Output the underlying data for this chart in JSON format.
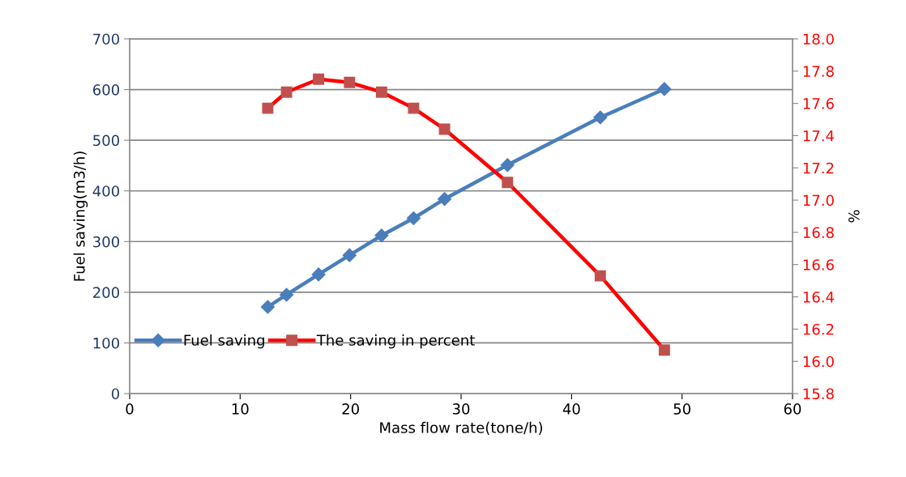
{
  "chart_data": {
    "type": "line",
    "xlabel": "Mass flow rate(tone/h)",
    "ylabel": "Fuel saving(m3/h)",
    "y2label": "%",
    "x": [
      12.5,
      14.2,
      17.1,
      19.9,
      22.8,
      25.7,
      28.5,
      34.2,
      42.6,
      48.4
    ],
    "series": [
      {
        "name": "Fuel saving",
        "color": "#4a7ebb",
        "marker": "diamond",
        "values": [
          171,
          195,
          235,
          273,
          312,
          346,
          384,
          451,
          545,
          601
        ]
      },
      {
        "name": "The saving in percent",
        "color": "#ff0000",
        "marker": "square",
        "axis": "y2",
        "values": [
          17.57,
          17.67,
          17.75,
          17.73,
          17.67,
          17.57,
          17.44,
          17.11,
          16.53,
          16.07
        ]
      }
    ],
    "xlim": [
      0,
      60
    ],
    "xticks": [
      0,
      10,
      20,
      30,
      40,
      50,
      60
    ],
    "ylim": [
      0,
      700
    ],
    "yticks": [
      0,
      100,
      200,
      300,
      400,
      500,
      600,
      700
    ],
    "y2lim": [
      15.8,
      18.0
    ],
    "y2ticks": [
      {
        "value": 15.8,
        "label": "15.8"
      },
      {
        "value": 16.0,
        "label": "16.0"
      },
      {
        "value": 16.2,
        "label": "16.2"
      },
      {
        "value": 16.4,
        "label": "16.4"
      },
      {
        "value": 16.6,
        "label": "16.6"
      },
      {
        "value": 16.8,
        "label": "16.8"
      },
      {
        "value": 17.0,
        "label": "17.0"
      },
      {
        "value": 17.2,
        "label": "17.2"
      },
      {
        "value": 17.4,
        "label": "17.4"
      },
      {
        "value": 17.6,
        "label": "17.6"
      },
      {
        "value": 17.8,
        "label": "17.8"
      },
      {
        "value": 18.0,
        "label": "18.0"
      }
    ],
    "grid": "y",
    "legend": "bottom left",
    "line_style": "solid"
  }
}
